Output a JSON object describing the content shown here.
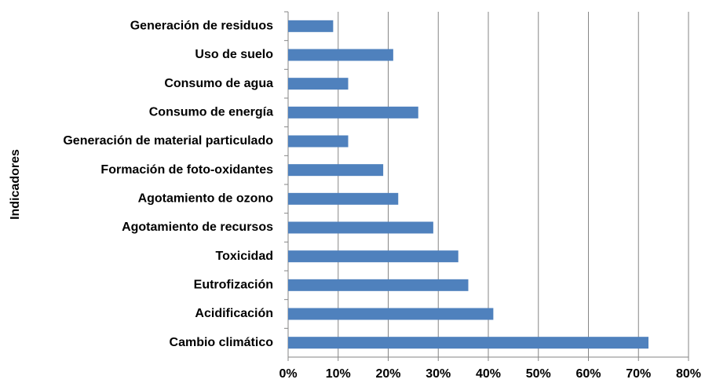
{
  "chart_data": {
    "type": "bar",
    "orientation": "horizontal",
    "y_label": "Indicadores",
    "categories": [
      "Generación de residuos",
      "Uso de suelo",
      "Consumo de agua",
      "Consumo de energía",
      "Generación de material particulado",
      "Formación de foto-oxidantes",
      "Agotamiento de ozono",
      "Agotamiento de recursos",
      "Toxicidad",
      "Eutrofización",
      "Acidificación",
      "Cambio climático"
    ],
    "values": [
      9,
      21,
      12,
      26,
      12,
      19,
      22,
      29,
      34,
      36,
      41,
      72
    ],
    "color": "#4f81bd",
    "xlim": [
      0,
      80
    ],
    "xticks": [
      {
        "value": 0,
        "label": "0%"
      },
      {
        "value": 10,
        "label": "10%"
      },
      {
        "value": 20,
        "label": "20%"
      },
      {
        "value": 30,
        "label": "30%"
      },
      {
        "value": 40,
        "label": "40%"
      },
      {
        "value": 50,
        "label": "50%"
      },
      {
        "value": 60,
        "label": "60%"
      },
      {
        "value": 70,
        "label": "70%"
      },
      {
        "value": 80,
        "label": "80%"
      }
    ],
    "grid": true
  }
}
